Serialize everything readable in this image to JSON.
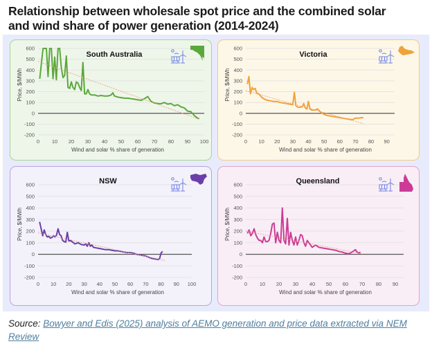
{
  "title_line1": "Relationship between wholesale spot price and the combined solar",
  "title_line2": "and wind share of power generation (2014-2024)",
  "source": {
    "prefix": "Source:",
    "link_text": "Bowyer and Edis (2025) analysis of AEMO generation and price data extracted via NEM Review"
  },
  "colors": {
    "board_bg": "#e8ebfb",
    "icon_blue": "#6b7fe8",
    "trend_line": "#e8a27c",
    "zero_line": "#555555"
  },
  "chart_data": [
    {
      "type": "line",
      "title": "South Australia",
      "xlabel": "Wind and solar % share of generation",
      "ylabel": "Price, $/MWh",
      "xlim": [
        0,
        100
      ],
      "ylim": [
        -200,
        600
      ],
      "xticks": [
        0,
        10,
        20,
        30,
        40,
        50,
        60,
        70,
        80,
        90,
        100
      ],
      "yticks": [
        600,
        500,
        400,
        300,
        200,
        100,
        0,
        -100,
        -200
      ],
      "grid": true,
      "color": "#5aa83a",
      "panel_bg": "#eef6ea",
      "panel_border": "#a8d494",
      "state_icon": "south-australia-map-icon",
      "x": [
        1,
        3,
        5,
        6,
        7,
        8,
        9,
        10,
        11,
        12,
        13,
        14,
        15,
        16,
        17,
        18,
        19,
        20,
        21,
        22,
        23,
        24,
        25,
        26,
        27,
        28,
        29,
        30,
        31,
        32,
        34,
        36,
        38,
        40,
        42,
        44,
        45,
        46,
        48,
        50,
        52,
        54,
        56,
        58,
        60,
        62,
        64,
        66,
        68,
        70,
        72,
        74,
        76,
        78,
        80,
        82,
        84,
        86,
        88,
        90,
        92,
        94,
        96,
        97
      ],
      "y": [
        320,
        600,
        600,
        340,
        600,
        600,
        320,
        520,
        310,
        600,
        600,
        420,
        330,
        350,
        530,
        240,
        230,
        290,
        240,
        220,
        290,
        280,
        240,
        210,
        470,
        180,
        180,
        220,
        180,
        170,
        170,
        160,
        165,
        160,
        160,
        170,
        190,
        160,
        150,
        145,
        140,
        140,
        135,
        130,
        125,
        120,
        135,
        155,
        110,
        95,
        90,
        88,
        100,
        85,
        90,
        70,
        80,
        60,
        50,
        20,
        15,
        -20,
        -45,
        -50
      ],
      "trend": {
        "x": [
          0,
          97
        ],
        "y": [
          480,
          -55
        ]
      }
    },
    {
      "type": "line",
      "title": "Victoria",
      "xlabel": "Wind and solar % share of generation",
      "ylabel": "Price, $/MWh",
      "xlim": [
        0,
        95
      ],
      "ylim": [
        -200,
        600
      ],
      "xticks": [
        0,
        10,
        20,
        30,
        40,
        50,
        60,
        70,
        80,
        90
      ],
      "yticks": [
        600,
        500,
        400,
        300,
        200,
        100,
        0,
        -100,
        -200
      ],
      "grid": true,
      "color": "#f0a23a",
      "panel_bg": "#fdf7e8",
      "panel_border": "#f2c98a",
      "state_icon": "victoria-map-icon",
      "x": [
        1,
        2,
        3,
        4,
        5,
        6,
        7,
        8,
        9,
        10,
        12,
        14,
        16,
        18,
        20,
        22,
        24,
        26,
        28,
        30,
        31,
        32,
        33,
        34,
        36,
        37,
        38,
        39,
        40,
        41,
        42,
        44,
        46,
        47,
        48,
        50,
        52,
        54,
        56,
        58,
        60,
        62,
        64,
        66,
        68,
        70,
        72,
        74,
        75
      ],
      "y": [
        270,
        340,
        180,
        240,
        220,
        230,
        190,
        180,
        170,
        150,
        130,
        120,
        115,
        110,
        110,
        100,
        95,
        90,
        85,
        80,
        195,
        70,
        60,
        55,
        60,
        90,
        50,
        40,
        110,
        40,
        30,
        30,
        40,
        20,
        10,
        -10,
        -20,
        -25,
        -30,
        -35,
        -40,
        -45,
        -50,
        -55,
        -60,
        -45,
        -45,
        -40,
        -40
      ],
      "trend": {
        "x": [
          0,
          75
        ],
        "y": [
          210,
          -95
        ]
      }
    },
    {
      "type": "line",
      "title": "NSW",
      "xlabel": "Wind and solar % share of generation",
      "ylabel": "Price, $/MWh",
      "xlim": [
        0,
        100
      ],
      "ylim": [
        -200,
        600
      ],
      "xticks": [
        0,
        10,
        20,
        30,
        40,
        50,
        60,
        70,
        80,
        90,
        100
      ],
      "yticks": [
        600,
        500,
        400,
        300,
        200,
        100,
        0,
        -100,
        -200
      ],
      "grid": true,
      "color": "#6a3fa8",
      "panel_bg": "#f3f1fa",
      "panel_border": "#b8a4dc",
      "state_icon": "nsw-map-icon",
      "x": [
        1,
        3,
        4,
        5,
        6,
        7,
        8,
        9,
        10,
        11,
        12,
        13,
        14,
        15,
        16,
        17,
        18,
        19,
        20,
        21,
        22,
        24,
        26,
        28,
        30,
        31,
        32,
        33,
        34,
        35,
        36,
        38,
        40,
        42,
        44,
        46,
        48,
        50,
        52,
        54,
        56,
        58,
        60,
        62,
        64,
        66,
        68,
        70,
        72,
        74,
        76,
        78,
        79,
        80,
        81
      ],
      "y": [
        280,
        160,
        210,
        170,
        150,
        155,
        140,
        145,
        160,
        150,
        165,
        220,
        170,
        160,
        120,
        110,
        105,
        190,
        115,
        120,
        110,
        90,
        100,
        85,
        80,
        90,
        70,
        100,
        70,
        80,
        60,
        55,
        50,
        45,
        40,
        40,
        35,
        30,
        30,
        25,
        20,
        15,
        15,
        10,
        0,
        -5,
        -10,
        -15,
        -25,
        -35,
        -40,
        -45,
        -40,
        10,
        25
      ],
      "trend": {
        "x": [
          0,
          83
        ],
        "y": [
          185,
          -55
        ]
      }
    },
    {
      "type": "line",
      "title": "Queensland",
      "xlabel": "Wind and solar % share of generation",
      "ylabel": "Price, $/MWh",
      "xlim": [
        0,
        95
      ],
      "ylim": [
        -200,
        600
      ],
      "xticks": [
        0,
        10,
        20,
        30,
        40,
        50,
        60,
        70,
        80,
        90
      ],
      "yticks": [
        600,
        500,
        400,
        300,
        200,
        100,
        0,
        -100,
        -200
      ],
      "grid": true,
      "color": "#cc3c96",
      "panel_bg": "#f9eef6",
      "panel_border": "#e2a2cc",
      "state_icon": "queensland-map-icon",
      "x": [
        1,
        2,
        3,
        4,
        5,
        6,
        7,
        8,
        9,
        10,
        11,
        12,
        13,
        14,
        15,
        16,
        17,
        18,
        19,
        20,
        21,
        22,
        23,
        24,
        25,
        26,
        27,
        28,
        29,
        30,
        31,
        32,
        33,
        34,
        35,
        36,
        37,
        38,
        40,
        42,
        44,
        46,
        48,
        50,
        52,
        54,
        56,
        58,
        60,
        62,
        64,
        66,
        67,
        68,
        69
      ],
      "y": [
        180,
        210,
        160,
        180,
        220,
        170,
        140,
        120,
        120,
        100,
        150,
        110,
        110,
        120,
        180,
        260,
        270,
        100,
        190,
        120,
        100,
        400,
        120,
        90,
        310,
        80,
        190,
        120,
        80,
        150,
        80,
        120,
        170,
        160,
        100,
        70,
        120,
        100,
        60,
        80,
        60,
        55,
        50,
        45,
        40,
        35,
        25,
        20,
        10,
        5,
        20,
        40,
        20,
        10,
        20
      ],
      "trend": {
        "x": [
          0,
          70
        ],
        "y": [
          200,
          5
        ]
      }
    }
  ]
}
